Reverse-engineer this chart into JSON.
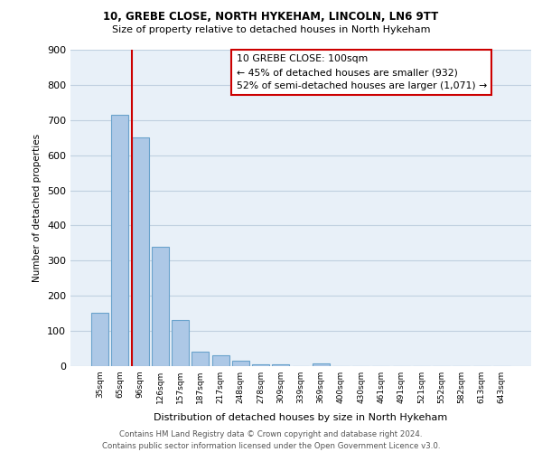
{
  "title1": "10, GREBE CLOSE, NORTH HYKEHAM, LINCOLN, LN6 9TT",
  "title2": "Size of property relative to detached houses in North Hykeham",
  "xlabel": "Distribution of detached houses by size in North Hykeham",
  "ylabel": "Number of detached properties",
  "footer": "Contains HM Land Registry data © Crown copyright and database right 2024.\nContains public sector information licensed under the Open Government Licence v3.0.",
  "bin_labels": [
    "35sqm",
    "65sqm",
    "96sqm",
    "126sqm",
    "157sqm",
    "187sqm",
    "217sqm",
    "248sqm",
    "278sqm",
    "309sqm",
    "339sqm",
    "369sqm",
    "400sqm",
    "430sqm",
    "461sqm",
    "491sqm",
    "521sqm",
    "552sqm",
    "582sqm",
    "613sqm",
    "643sqm"
  ],
  "bar_values": [
    152,
    715,
    650,
    340,
    130,
    42,
    30,
    15,
    5,
    5,
    0,
    8,
    0,
    0,
    0,
    0,
    0,
    0,
    0,
    0,
    0
  ],
  "bar_color": "#adc8e6",
  "bar_edge_color": "#6aa3cc",
  "annotation_title": "10 GREBE CLOSE: 100sqm",
  "annotation_line1": "← 45% of detached houses are smaller (932)",
  "annotation_line2": "52% of semi-detached houses are larger (1,071) →",
  "annotation_box_color": "#ffffff",
  "annotation_box_edge_color": "#cc0000",
  "red_line_color": "#cc0000",
  "red_line_x": 1.575,
  "ylim": [
    0,
    900
  ],
  "yticks": [
    0,
    100,
    200,
    300,
    400,
    500,
    600,
    700,
    800,
    900
  ],
  "grid_color": "#c0d0e0",
  "bg_color": "#e8f0f8"
}
